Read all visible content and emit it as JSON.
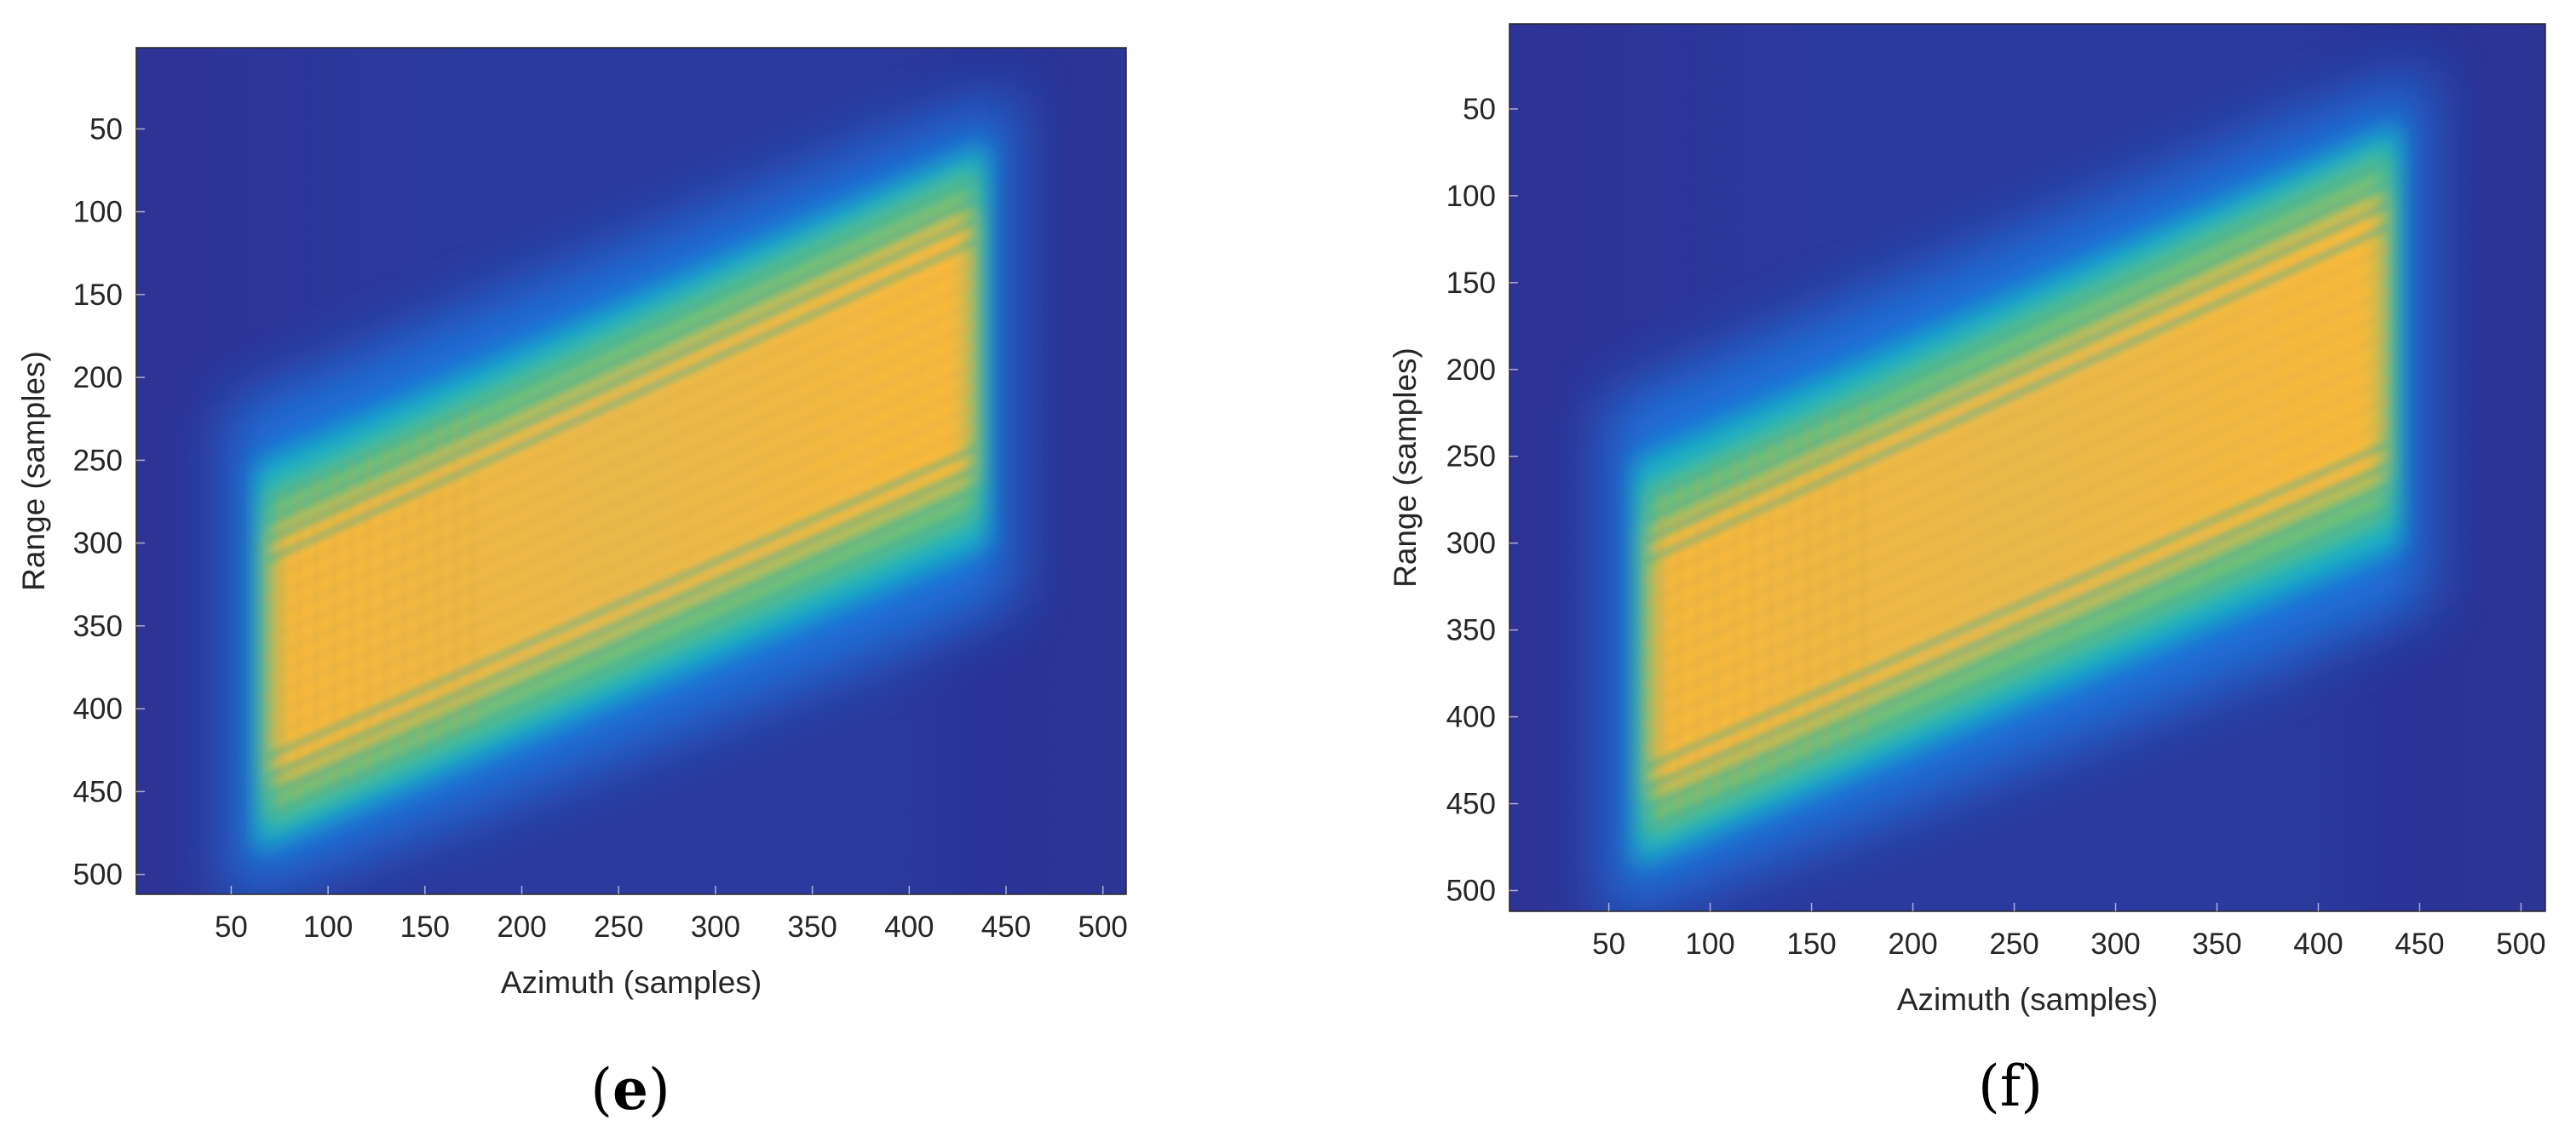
{
  "colors": {
    "background": "#2d3595",
    "low": "#2b3a9e",
    "mid_blue": "#1f7ce4",
    "cyan": "#19b4c4",
    "green": "#6cc07c",
    "yellow": "#f9b93a",
    "axis": "#262626"
  },
  "chart_data": [
    {
      "type": "heatmap",
      "panel_label": "e",
      "xlabel": "Azimuth (samples)",
      "ylabel": "Range (samples)",
      "xlim": [
        1,
        512
      ],
      "ylim": [
        1,
        512
      ],
      "y_reversed": true,
      "xticks": [
        50,
        100,
        150,
        200,
        250,
        300,
        350,
        400,
        450,
        500
      ],
      "yticks": [
        50,
        100,
        150,
        200,
        250,
        300,
        350,
        400,
        450,
        500
      ],
      "colormap": "parula",
      "band": {
        "description_of_values": "bright slanted parallelogram of high intensity",
        "left_edge_azimuth": 68,
        "right_edge_azimuth": 435,
        "left_range_top": 275,
        "left_range_bottom": 465,
        "right_range_top": 80,
        "right_range_bottom": 280
      }
    },
    {
      "type": "heatmap",
      "panel_label": "f",
      "xlabel": "Azimuth (samples)",
      "ylabel": "Range (samples)",
      "xlim": [
        1,
        512
      ],
      "ylim": [
        1,
        512
      ],
      "y_reversed": true,
      "xticks": [
        50,
        100,
        150,
        200,
        250,
        300,
        350,
        400,
        450,
        500
      ],
      "yticks": [
        50,
        100,
        150,
        200,
        250,
        300,
        350,
        400,
        450,
        500
      ],
      "colormap": "parula",
      "band": {
        "description_of_values": "bright slanted parallelogram of high intensity",
        "left_edge_azimuth": 68,
        "right_edge_azimuth": 435,
        "left_range_top": 275,
        "left_range_bottom": 465,
        "right_range_top": 80,
        "right_range_bottom": 280
      }
    }
  ],
  "labels": {
    "panel_e": "e",
    "panel_f": "f",
    "open_paren": "(",
    "close_paren": ")"
  }
}
